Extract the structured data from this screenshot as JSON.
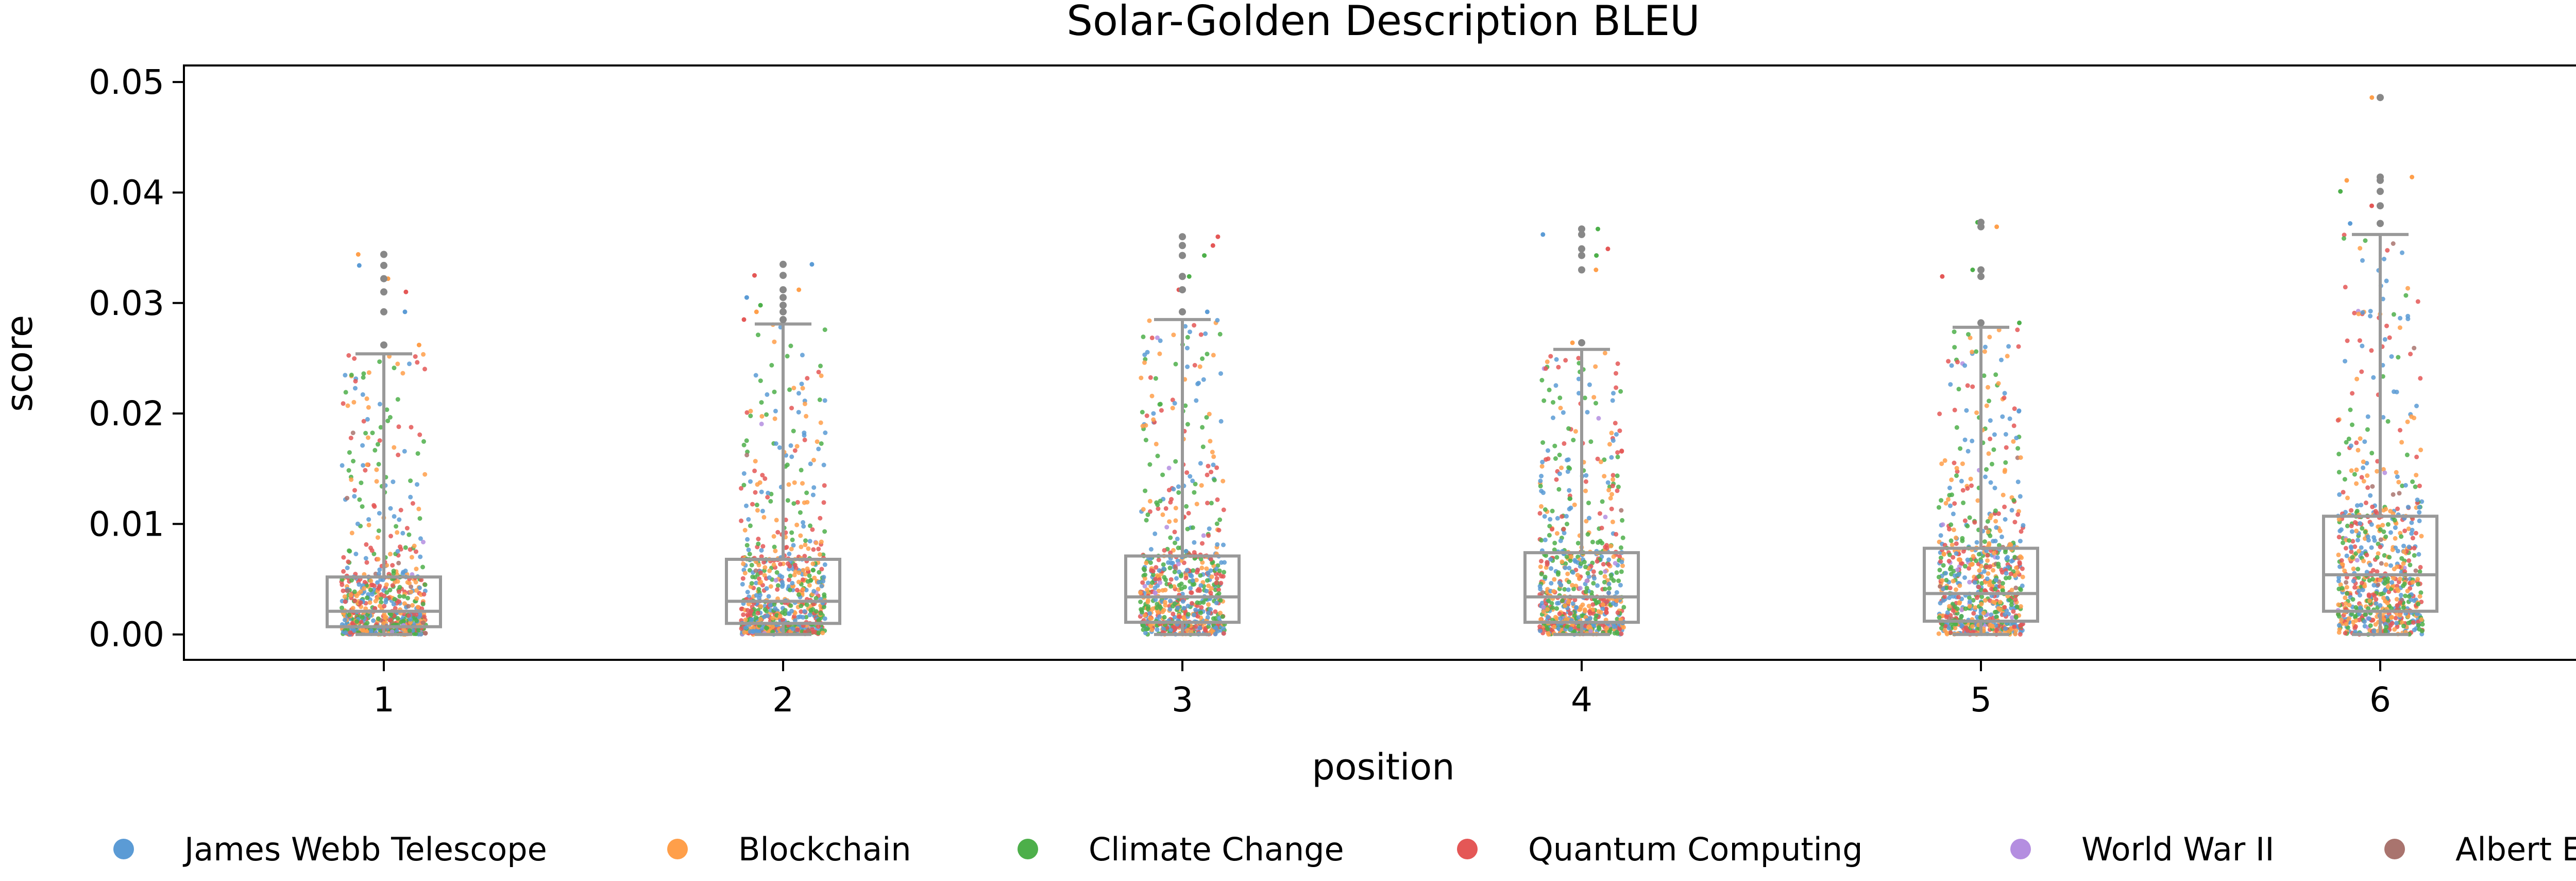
{
  "chart_data": {
    "type": "box",
    "title": "Solar-Golden Description BLEU",
    "xlabel": "position",
    "ylabel": "score",
    "x_categories": [
      "1",
      "2",
      "3",
      "4",
      "5",
      "6"
    ],
    "y_ticks": [
      "0.00",
      "0.01",
      "0.02",
      "0.03",
      "0.04",
      "0.05"
    ],
    "ylim": [
      -0.0023,
      0.0515
    ],
    "grid": false,
    "legend_position": "bottom",
    "overlay": "strip (jittered points per topic)",
    "series": [
      {
        "name": "James Webb Telescope",
        "color": "#5b9bd5"
      },
      {
        "name": "Blockchain",
        "color": "#ff9f4a"
      },
      {
        "name": "Climate Change",
        "color": "#4daf4a"
      },
      {
        "name": "Quantum Computing",
        "color": "#e45756"
      },
      {
        "name": "World War II",
        "color": "#b48ee0"
      },
      {
        "name": "Albert Einstein",
        "color": "#a9746e"
      }
    ],
    "boxes": [
      {
        "position": "1",
        "whisker_low": 0.0,
        "q1": 0.0007,
        "median": 0.0021,
        "q3": 0.0052,
        "whisker_high": 0.0254,
        "outliers": [
          0.0262,
          0.0292,
          0.031,
          0.0322,
          0.0334,
          0.0344
        ]
      },
      {
        "position": "2",
        "whisker_low": 0.0,
        "q1": 0.001,
        "median": 0.003,
        "q3": 0.0068,
        "whisker_high": 0.0281,
        "outliers": [
          0.0285,
          0.0292,
          0.0298,
          0.0305,
          0.0312,
          0.0325,
          0.0335
        ]
      },
      {
        "position": "3",
        "whisker_low": 0.0,
        "q1": 0.0011,
        "median": 0.0034,
        "q3": 0.0071,
        "whisker_high": 0.0285,
        "outliers": [
          0.0292,
          0.0312,
          0.0324,
          0.0343,
          0.0352,
          0.036
        ]
      },
      {
        "position": "4",
        "whisker_low": 0.0,
        "q1": 0.0011,
        "median": 0.0034,
        "q3": 0.0074,
        "whisker_high": 0.0258,
        "outliers": [
          0.0264,
          0.033,
          0.0343,
          0.0349,
          0.0362,
          0.0367
        ]
      },
      {
        "position": "5",
        "whisker_low": 0.0,
        "q1": 0.0012,
        "median": 0.0037,
        "q3": 0.0078,
        "whisker_high": 0.0278,
        "outliers": [
          0.0282,
          0.0324,
          0.033,
          0.0369,
          0.0373
        ]
      },
      {
        "position": "6",
        "whisker_low": 0.0,
        "q1": 0.0021,
        "median": 0.0054,
        "q3": 0.0107,
        "whisker_high": 0.0362,
        "outliers": [
          0.0372,
          0.0388,
          0.0401,
          0.0411,
          0.0414,
          0.0486
        ]
      }
    ]
  }
}
